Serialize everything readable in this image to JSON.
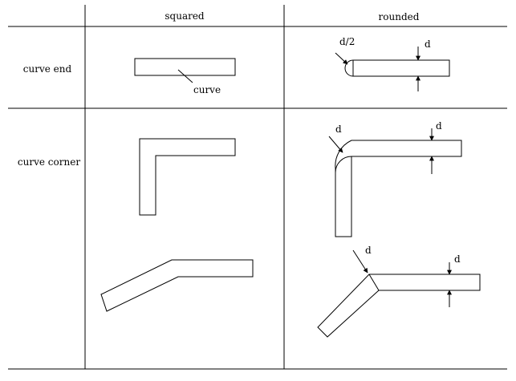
{
  "columns": {
    "squared": "squared",
    "rounded": "rounded"
  },
  "rows": {
    "curve_end": "curve end",
    "curve_corner": "curve corner"
  },
  "labels": {
    "curve": "curve",
    "half_width": "d/2",
    "width": "d"
  },
  "colors": {
    "line": "#000000",
    "background": "#ffffff"
  }
}
